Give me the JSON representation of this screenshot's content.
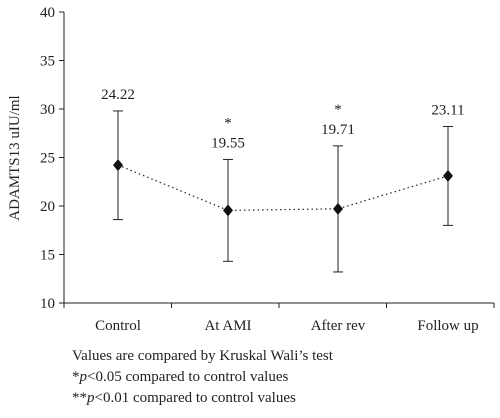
{
  "chart_data": {
    "type": "line",
    "ylabel": "ADAMTS13 uIU/ml",
    "ylim": [
      10,
      40
    ],
    "yticks": [
      10,
      15,
      20,
      25,
      30,
      35,
      40
    ],
    "categories": [
      "Control",
      "At AMI",
      "After rev",
      "Follow up"
    ],
    "series": [
      {
        "values": [
          24.22,
          19.55,
          19.71,
          23.11
        ],
        "error_low": [
          18.6,
          14.3,
          13.2,
          18.0
        ],
        "error_high": [
          29.8,
          24.8,
          26.2,
          28.2
        ],
        "line_style": "dotted",
        "marker": "diamond"
      }
    ],
    "data_labels": [
      "24.22",
      "19.55",
      "19.71",
      "23.11"
    ],
    "significance_marks": [
      "",
      "*",
      "*",
      ""
    ],
    "grid": false
  },
  "notes": {
    "line1": "Values are compared by Kruskal Wali’s test",
    "line2_mark": "*",
    "line2_p": "p",
    "line2_rest": "<0.05 compared to control values",
    "line3_mark": "**",
    "line3_p": "p",
    "line3_rest": "<0.01 compared to control values"
  }
}
